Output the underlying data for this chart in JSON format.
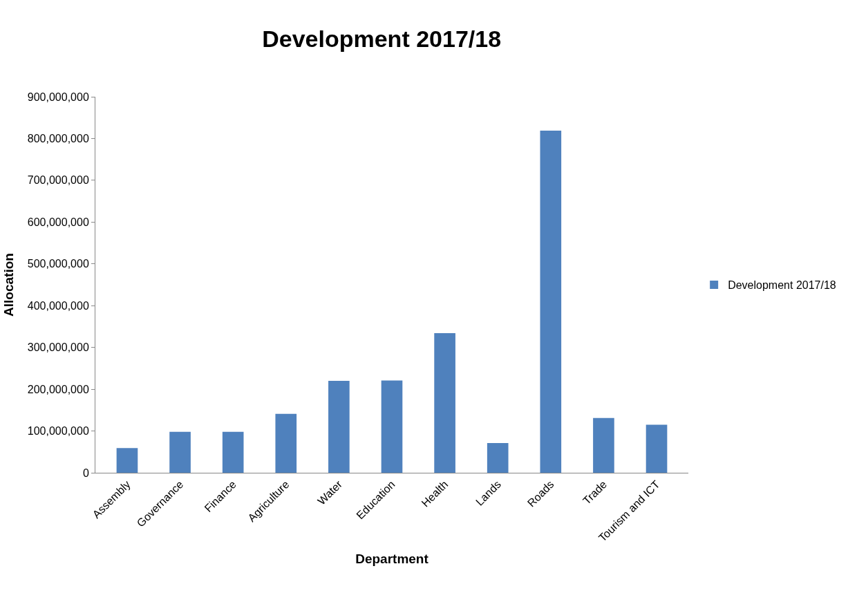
{
  "chart_data": {
    "type": "bar",
    "title": "Development 2017/18",
    "xlabel": "Department",
    "ylabel": "Allocation",
    "categories": [
      "Assembly",
      "Governance",
      "Finance",
      "Agriculture",
      "Water",
      "Education",
      "Health",
      "Lands",
      "Roads",
      "Trade",
      "Tourism and ICT"
    ],
    "series": [
      {
        "name": "Development 2017/18",
        "color": "#4f81bd",
        "values": [
          59000000,
          98000000,
          98000000,
          141000000,
          220000000,
          221000000,
          334000000,
          71000000,
          819000000,
          131000000,
          115000000
        ]
      }
    ],
    "ylim": [
      0,
      900000000
    ],
    "yticks": [
      {
        "value": 0,
        "label": "0"
      },
      {
        "value": 100000000,
        "label": "100,000,000"
      },
      {
        "value": 200000000,
        "label": "200,000,000"
      },
      {
        "value": 300000000,
        "label": "300,000,000"
      },
      {
        "value": 400000000,
        "label": "400,000,000"
      },
      {
        "value": 500000000,
        "label": "500,000,000"
      },
      {
        "value": 600000000,
        "label": "600,000,000"
      },
      {
        "value": 700000000,
        "label": "700,000,000"
      },
      {
        "value": 800000000,
        "label": "800,000,000"
      },
      {
        "value": 900000000,
        "label": "900,000,000"
      }
    ],
    "grid": false,
    "legend": "right"
  }
}
